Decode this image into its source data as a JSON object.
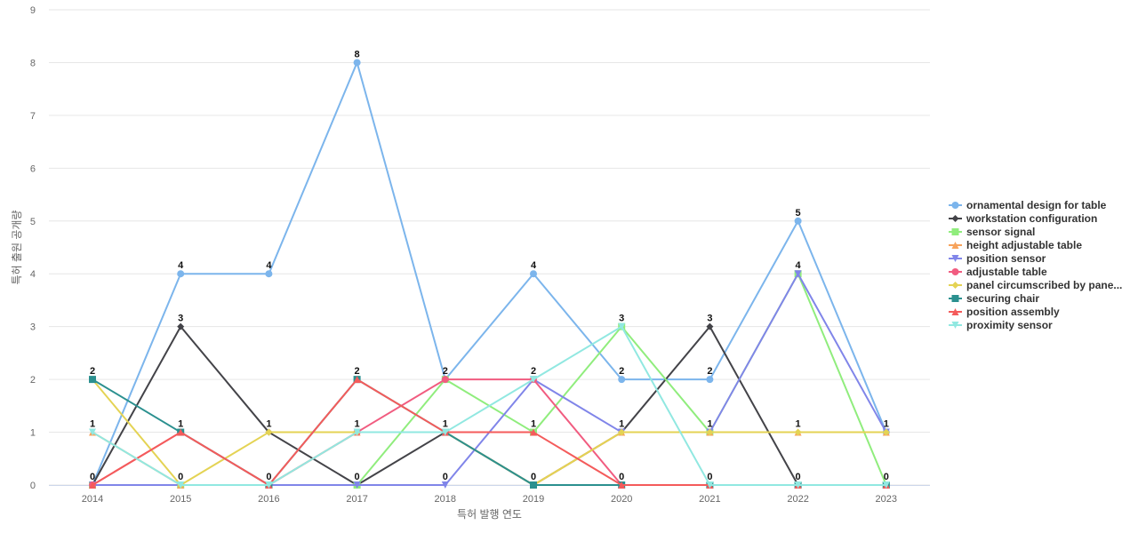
{
  "chart_data": {
    "type": "line",
    "xlabel": "특허 발행 연도",
    "ylabel": "특허 출원 공개량",
    "ylim": [
      0,
      9
    ],
    "yticks": [
      0,
      1,
      2,
      3,
      4,
      5,
      6,
      7,
      8,
      9
    ],
    "grid": true,
    "legend_position": "right",
    "x": [
      "2014",
      "2015",
      "2016",
      "2017",
      "2018",
      "2019",
      "2020",
      "2021",
      "2022",
      "2023"
    ],
    "series": [
      {
        "name": "ornamental design for table",
        "color": "#7cb5ec",
        "marker": "circle",
        "values": [
          0,
          4,
          4,
          8,
          2,
          4,
          2,
          2,
          5,
          1
        ]
      },
      {
        "name": "workstation configuration",
        "color": "#434348",
        "marker": "diamond",
        "values": [
          0,
          3,
          1,
          0,
          1,
          0,
          1,
          3,
          0,
          0
        ]
      },
      {
        "name": "sensor signal",
        "color": "#90ed7d",
        "marker": "square",
        "values": [
          0,
          0,
          0,
          0,
          2,
          1,
          3,
          1,
          4,
          0
        ]
      },
      {
        "name": "height adjustable table",
        "color": "#f7a35c",
        "marker": "triangle",
        "values": [
          1,
          0,
          0,
          1,
          1,
          0,
          1,
          1,
          1,
          1
        ]
      },
      {
        "name": "position sensor",
        "color": "#8085e9",
        "marker": "triangle-down",
        "values": [
          0,
          0,
          0,
          0,
          0,
          2,
          1,
          1,
          4,
          1
        ]
      },
      {
        "name": "adjustable table",
        "color": "#f15c80",
        "marker": "circle",
        "values": [
          0,
          1,
          0,
          1,
          2,
          2,
          0,
          0,
          0,
          0
        ]
      },
      {
        "name": "panel circumscribed by pane...",
        "color": "#e4d354",
        "marker": "diamond",
        "values": [
          2,
          0,
          1,
          1,
          1,
          0,
          1,
          1,
          1,
          1
        ]
      },
      {
        "name": "securing chair",
        "color": "#2b908f",
        "marker": "square",
        "values": [
          2,
          1,
          0,
          2,
          1,
          0,
          0,
          0,
          0,
          0
        ]
      },
      {
        "name": "position assembly",
        "color": "#f45b5b",
        "marker": "triangle",
        "values": [
          0,
          1,
          0,
          2,
          1,
          1,
          0,
          0,
          0,
          0
        ]
      },
      {
        "name": "proximity sensor",
        "color": "#91e8e1",
        "marker": "triangle-down",
        "values": [
          1,
          0,
          0,
          1,
          1,
          2,
          3,
          0,
          0,
          0
        ]
      }
    ],
    "data_labels": [
      {
        "x": "2014",
        "value": 2
      },
      {
        "x": "2014",
        "value": 1
      },
      {
        "x": "2014",
        "value": 0
      },
      {
        "x": "2015",
        "value": 4
      },
      {
        "x": "2015",
        "value": 3
      },
      {
        "x": "2015",
        "value": 1
      },
      {
        "x": "2015",
        "value": 0
      },
      {
        "x": "2016",
        "value": 4
      },
      {
        "x": "2016",
        "value": 1
      },
      {
        "x": "2016",
        "value": 0
      },
      {
        "x": "2017",
        "value": 8
      },
      {
        "x": "2017",
        "value": 2
      },
      {
        "x": "2017",
        "value": 1
      },
      {
        "x": "2017",
        "value": 0
      },
      {
        "x": "2018",
        "value": 2
      },
      {
        "x": "2018",
        "value": 1
      },
      {
        "x": "2018",
        "value": 0
      },
      {
        "x": "2019",
        "value": 4
      },
      {
        "x": "2019",
        "value": 2
      },
      {
        "x": "2019",
        "value": 1
      },
      {
        "x": "2019",
        "value": 0
      },
      {
        "x": "2020",
        "value": 3
      },
      {
        "x": "2020",
        "value": 2
      },
      {
        "x": "2020",
        "value": 1
      },
      {
        "x": "2020",
        "value": 0
      },
      {
        "x": "2021",
        "value": 3
      },
      {
        "x": "2021",
        "value": 2
      },
      {
        "x": "2021",
        "value": 1
      },
      {
        "x": "2021",
        "value": 0
      },
      {
        "x": "2022",
        "value": 5
      },
      {
        "x": "2022",
        "value": 4
      },
      {
        "x": "2022",
        "value": 1
      },
      {
        "x": "2022",
        "value": 0
      },
      {
        "x": "2023",
        "value": 1
      },
      {
        "x": "2023",
        "value": 0
      }
    ]
  }
}
